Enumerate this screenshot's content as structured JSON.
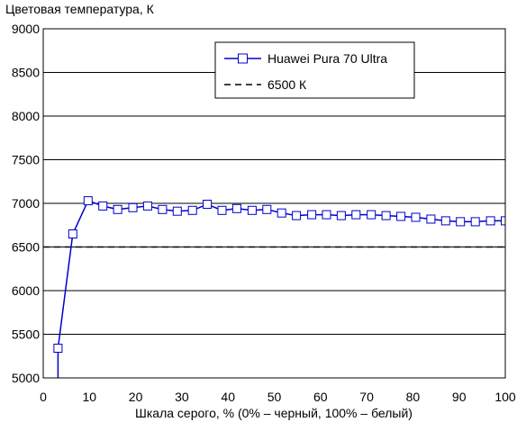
{
  "chart_data": {
    "type": "line",
    "title": "Цветовая температура, К",
    "xlabel": "Шкала серого, % (0% – черный, 100% – белый)",
    "ylabel": "",
    "xlim": [
      0,
      100
    ],
    "ylim": [
      5000,
      9000
    ],
    "x_ticks": [
      0,
      10,
      20,
      30,
      40,
      50,
      60,
      70,
      80,
      90,
      100
    ],
    "y_ticks": [
      5000,
      5500,
      6000,
      6500,
      7000,
      7500,
      8000,
      8500,
      9000
    ],
    "grid": "horizontal",
    "legend_position": "top-right",
    "series": [
      {
        "name": "Huawei Pura 70 Ultra",
        "color": "#0000cc",
        "marker": "square-open",
        "x": [
          3.2,
          6.4,
          9.7,
          12.9,
          16.1,
          19.4,
          22.6,
          25.8,
          29.0,
          32.3,
          35.5,
          38.7,
          41.9,
          45.2,
          48.4,
          51.6,
          54.8,
          58.1,
          61.3,
          64.5,
          67.7,
          71.0,
          74.2,
          77.4,
          80.6,
          83.9,
          87.1,
          90.3,
          93.5,
          96.8,
          100
        ],
        "y": [
          5340,
          6650,
          7030,
          6970,
          6930,
          6950,
          6970,
          6930,
          6910,
          6920,
          6990,
          6920,
          6940,
          6920,
          6930,
          6890,
          6860,
          6870,
          6870,
          6860,
          6870,
          6870,
          6860,
          6850,
          6840,
          6820,
          6800,
          6790,
          6790,
          6800,
          6800
        ]
      },
      {
        "name": "6500 К",
        "color": "#000000",
        "style": "dashed",
        "x": [
          0,
          100
        ],
        "y": [
          6500,
          6500
        ]
      }
    ]
  }
}
